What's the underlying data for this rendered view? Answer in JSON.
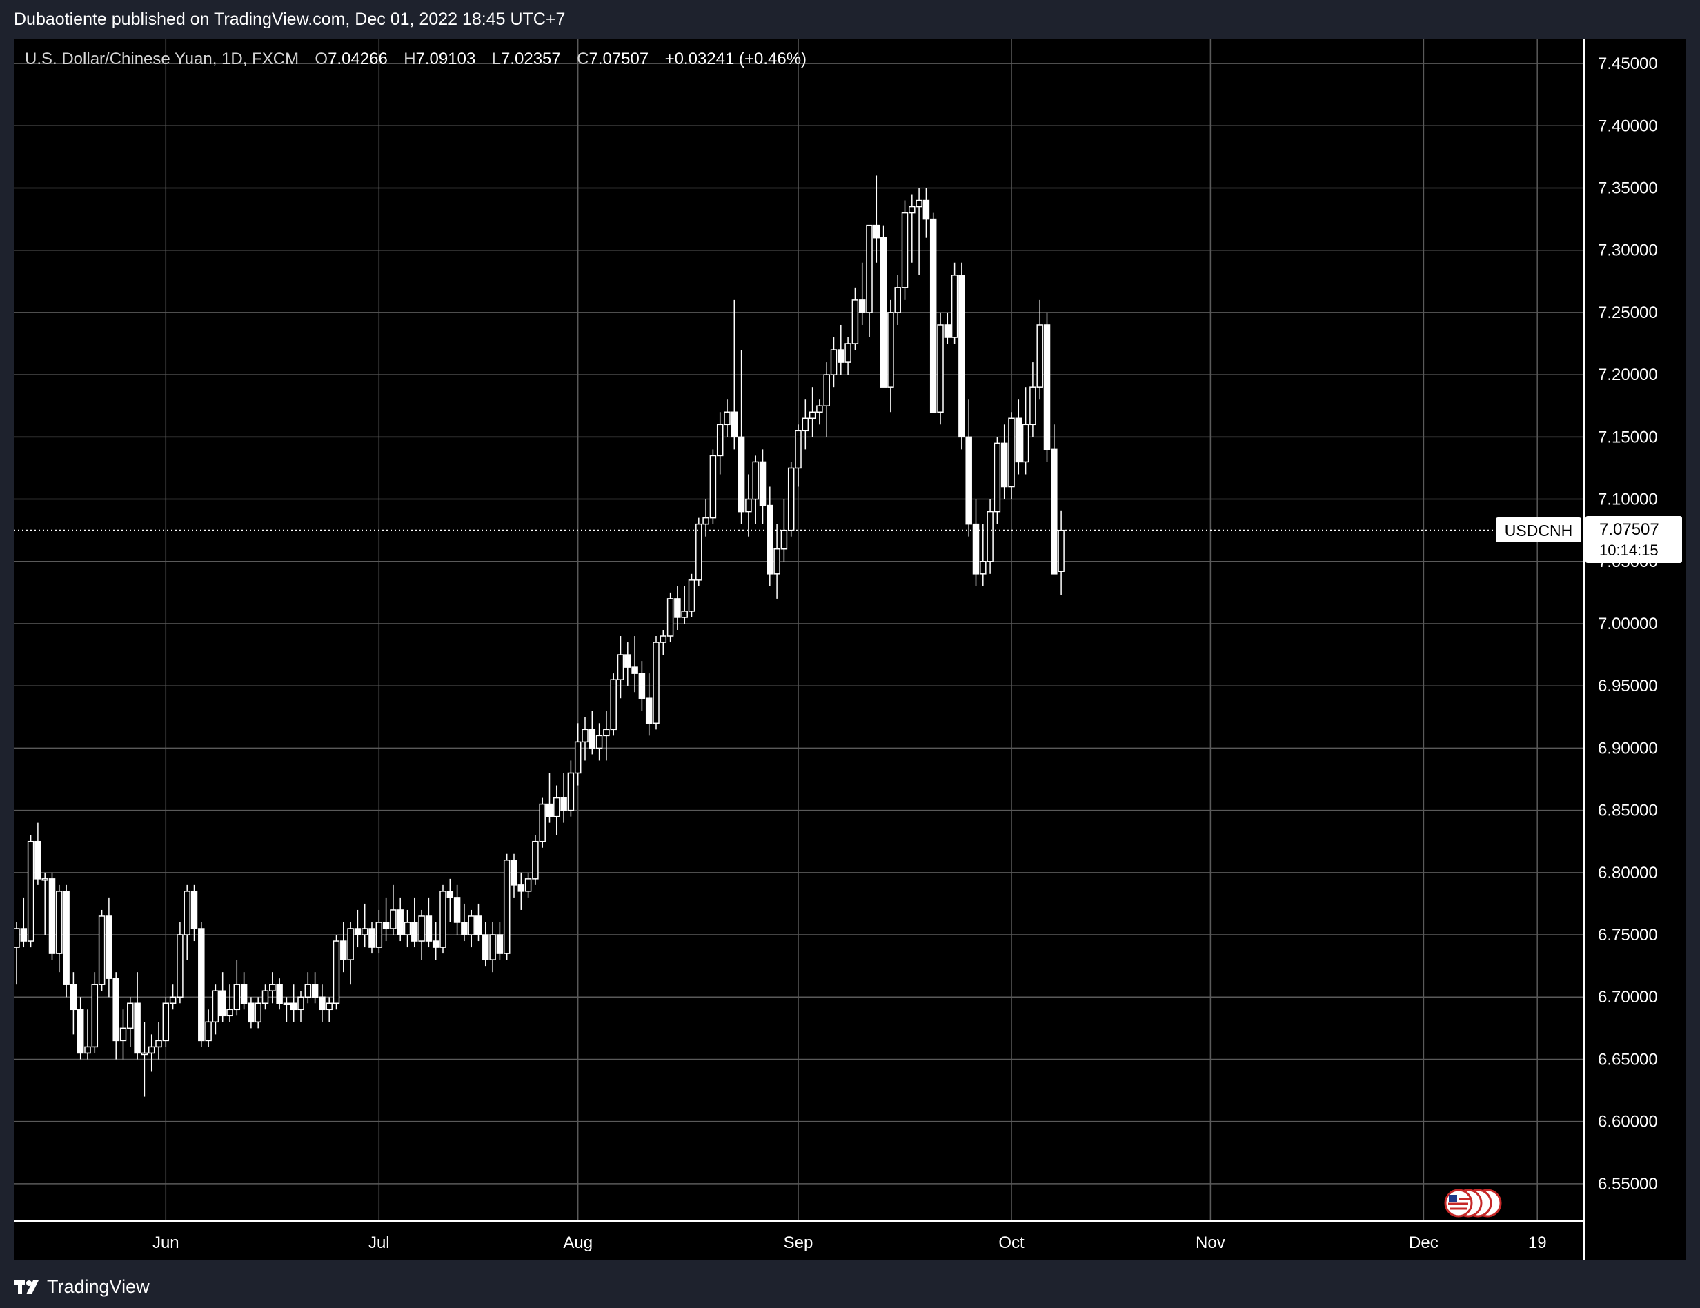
{
  "publish_line": "Dubaotiente published on TradingView.com, Dec 01, 2022 18:45 UTC+7",
  "footer_brand": "TradingView",
  "colors": {
    "background": "#000000",
    "frame": "#1e222d",
    "grid": "#5a5a5a",
    "candle": "#ffffff",
    "text": "#ffffff",
    "label_bg": "#ffffff",
    "label_text": "#000000"
  },
  "legend": {
    "symbol": "U.S. Dollar/Chinese Yuan, 1D, FXCM",
    "open_label": "O",
    "open": "7.04266",
    "high_label": "H",
    "high": "7.09103",
    "low_label": "L",
    "low": "7.02357",
    "close_label": "C",
    "close": "7.07507",
    "change": "+0.03241 (+0.46%)"
  },
  "price_label": {
    "ticker": "USDCNH",
    "price": "7.07507",
    "countdown": "10:14:15"
  },
  "event_icon": "us-flag-events-icon",
  "chart_data": {
    "type": "candlestick",
    "title": "U.S. Dollar/Chinese Yuan, 1D, FXCM",
    "ylim": [
      6.52,
      7.47
    ],
    "y_ticks": [
      "6.55000",
      "6.60000",
      "6.65000",
      "6.70000",
      "6.75000",
      "6.80000",
      "6.85000",
      "6.90000",
      "6.95000",
      "7.00000",
      "7.05000",
      "7.10000",
      "7.15000",
      "7.20000",
      "7.25000",
      "7.30000",
      "7.35000",
      "7.40000",
      "7.45000"
    ],
    "x_ticks": [
      {
        "label": "Jun",
        "index": 21
      },
      {
        "label": "Jul",
        "index": 51
      },
      {
        "label": "Aug",
        "index": 79
      },
      {
        "label": "Sep",
        "index": 110
      },
      {
        "label": "Oct",
        "index": 140
      },
      {
        "label": "Nov",
        "index": 168
      },
      {
        "label": "Dec",
        "index": 198
      },
      {
        "label": "19",
        "index": 214
      }
    ],
    "grid": true,
    "candles": [
      [
        6.74,
        6.76,
        6.71,
        6.755
      ],
      [
        6.755,
        6.78,
        6.74,
        6.745
      ],
      [
        6.745,
        6.83,
        6.74,
        6.825
      ],
      [
        6.825,
        6.84,
        6.79,
        6.795
      ],
      [
        6.795,
        6.8,
        6.75,
        6.795
      ],
      [
        6.795,
        6.8,
        6.73,
        6.735
      ],
      [
        6.735,
        6.79,
        6.72,
        6.785
      ],
      [
        6.785,
        6.79,
        6.7,
        6.71
      ],
      [
        6.71,
        6.72,
        6.67,
        6.69
      ],
      [
        6.69,
        6.7,
        6.65,
        6.655
      ],
      [
        6.655,
        6.69,
        6.65,
        6.66
      ],
      [
        6.66,
        6.72,
        6.655,
        6.71
      ],
      [
        6.71,
        6.77,
        6.705,
        6.765
      ],
      [
        6.765,
        6.78,
        6.7,
        6.715
      ],
      [
        6.715,
        6.72,
        6.65,
        6.665
      ],
      [
        6.665,
        6.69,
        6.65,
        6.675
      ],
      [
        6.675,
        6.7,
        6.66,
        6.695
      ],
      [
        6.695,
        6.72,
        6.65,
        6.655
      ],
      [
        6.655,
        6.68,
        6.62,
        6.655
      ],
      [
        6.655,
        6.67,
        6.64,
        6.66
      ],
      [
        6.66,
        6.68,
        6.65,
        6.665
      ],
      [
        6.665,
        6.7,
        6.66,
        6.695
      ],
      [
        6.695,
        6.71,
        6.69,
        6.7
      ],
      [
        6.7,
        6.76,
        6.695,
        6.75
      ],
      [
        6.75,
        6.79,
        6.73,
        6.785
      ],
      [
        6.785,
        6.79,
        6.745,
        6.755
      ],
      [
        6.755,
        6.76,
        6.66,
        6.665
      ],
      [
        6.665,
        6.69,
        6.66,
        6.68
      ],
      [
        6.68,
        6.71,
        6.67,
        6.705
      ],
      [
        6.705,
        6.72,
        6.68,
        6.685
      ],
      [
        6.685,
        6.71,
        6.68,
        6.69
      ],
      [
        6.69,
        6.73,
        6.685,
        6.71
      ],
      [
        6.71,
        6.72,
        6.69,
        6.695
      ],
      [
        6.695,
        6.7,
        6.675,
        6.68
      ],
      [
        6.68,
        6.7,
        6.675,
        6.695
      ],
      [
        6.695,
        6.71,
        6.69,
        6.705
      ],
      [
        6.705,
        6.72,
        6.695,
        6.71
      ],
      [
        6.71,
        6.715,
        6.69,
        6.695
      ],
      [
        6.695,
        6.7,
        6.68,
        6.695
      ],
      [
        6.695,
        6.71,
        6.68,
        6.69
      ],
      [
        6.69,
        6.705,
        6.68,
        6.7
      ],
      [
        6.7,
        6.72,
        6.695,
        6.71
      ],
      [
        6.71,
        6.72,
        6.695,
        6.7
      ],
      [
        6.7,
        6.71,
        6.68,
        6.69
      ],
      [
        6.69,
        6.7,
        6.68,
        6.695
      ],
      [
        6.695,
        6.75,
        6.69,
        6.745
      ],
      [
        6.745,
        6.76,
        6.72,
        6.73
      ],
      [
        6.73,
        6.76,
        6.71,
        6.755
      ],
      [
        6.755,
        6.77,
        6.74,
        6.75
      ],
      [
        6.75,
        6.775,
        6.74,
        6.755
      ],
      [
        6.755,
        6.76,
        6.735,
        6.74
      ],
      [
        6.74,
        6.77,
        6.735,
        6.76
      ],
      [
        6.76,
        6.78,
        6.745,
        6.755
      ],
      [
        6.755,
        6.79,
        6.75,
        6.77
      ],
      [
        6.77,
        6.78,
        6.745,
        6.75
      ],
      [
        6.75,
        6.77,
        6.74,
        6.76
      ],
      [
        6.76,
        6.78,
        6.74,
        6.745
      ],
      [
        6.745,
        6.77,
        6.73,
        6.765
      ],
      [
        6.765,
        6.78,
        6.74,
        6.745
      ],
      [
        6.745,
        6.76,
        6.73,
        6.74
      ],
      [
        6.74,
        6.79,
        6.735,
        6.785
      ],
      [
        6.785,
        6.795,
        6.76,
        6.78
      ],
      [
        6.78,
        6.79,
        6.75,
        6.76
      ],
      [
        6.76,
        6.775,
        6.745,
        6.75
      ],
      [
        6.75,
        6.77,
        6.74,
        6.765
      ],
      [
        6.765,
        6.775,
        6.745,
        6.75
      ],
      [
        6.75,
        6.76,
        6.725,
        6.73
      ],
      [
        6.73,
        6.76,
        6.72,
        6.75
      ],
      [
        6.75,
        6.76,
        6.73,
        6.735
      ],
      [
        6.735,
        6.815,
        6.73,
        6.81
      ],
      [
        6.81,
        6.815,
        6.78,
        6.79
      ],
      [
        6.79,
        6.8,
        6.77,
        6.785
      ],
      [
        6.785,
        6.8,
        6.78,
        6.795
      ],
      [
        6.795,
        6.83,
        6.79,
        6.825
      ],
      [
        6.825,
        6.86,
        6.82,
        6.855
      ],
      [
        6.855,
        6.88,
        6.84,
        6.845
      ],
      [
        6.845,
        6.87,
        6.83,
        6.86
      ],
      [
        6.86,
        6.88,
        6.84,
        6.85
      ],
      [
        6.85,
        6.89,
        6.845,
        6.88
      ],
      [
        6.88,
        6.92,
        6.87,
        6.905
      ],
      [
        6.905,
        6.925,
        6.89,
        6.915
      ],
      [
        6.915,
        6.93,
        6.895,
        6.9
      ],
      [
        6.9,
        6.92,
        6.89,
        6.91
      ],
      [
        6.91,
        6.93,
        6.89,
        6.915
      ],
      [
        6.915,
        6.96,
        6.91,
        6.955
      ],
      [
        6.955,
        6.99,
        6.94,
        6.975
      ],
      [
        6.975,
        6.985,
        6.95,
        6.965
      ],
      [
        6.965,
        6.99,
        6.945,
        6.96
      ],
      [
        6.96,
        6.97,
        6.93,
        6.94
      ],
      [
        6.94,
        6.96,
        6.91,
        6.92
      ],
      [
        6.92,
        6.99,
        6.915,
        6.985
      ],
      [
        6.985,
        6.995,
        6.975,
        6.99
      ],
      [
        6.99,
        7.025,
        6.985,
        7.02
      ],
      [
        7.02,
        7.03,
        6.995,
        7.005
      ],
      [
        7.005,
        7.03,
        7.0,
        7.01
      ],
      [
        7.01,
        7.04,
        7.005,
        7.035
      ],
      [
        7.035,
        7.085,
        7.03,
        7.08
      ],
      [
        7.08,
        7.1,
        7.07,
        7.085
      ],
      [
        7.085,
        7.14,
        7.08,
        7.135
      ],
      [
        7.135,
        7.17,
        7.12,
        7.16
      ],
      [
        7.16,
        7.18,
        7.15,
        7.17
      ],
      [
        7.17,
        7.26,
        7.14,
        7.15
      ],
      [
        7.15,
        7.22,
        7.08,
        7.09
      ],
      [
        7.09,
        7.12,
        7.07,
        7.1
      ],
      [
        7.1,
        7.135,
        7.08,
        7.13
      ],
      [
        7.13,
        7.14,
        7.08,
        7.095
      ],
      [
        7.095,
        7.11,
        7.03,
        7.04
      ],
      [
        7.04,
        7.08,
        7.02,
        7.06
      ],
      [
        7.06,
        7.1,
        7.05,
        7.075
      ],
      [
        7.075,
        7.13,
        7.07,
        7.125
      ],
      [
        7.125,
        7.16,
        7.11,
        7.155
      ],
      [
        7.155,
        7.18,
        7.14,
        7.165
      ],
      [
        7.165,
        7.19,
        7.15,
        7.17
      ],
      [
        7.17,
        7.18,
        7.16,
        7.175
      ],
      [
        7.175,
        7.21,
        7.15,
        7.2
      ],
      [
        7.2,
        7.23,
        7.19,
        7.22
      ],
      [
        7.22,
        7.24,
        7.2,
        7.21
      ],
      [
        7.21,
        7.23,
        7.2,
        7.225
      ],
      [
        7.225,
        7.27,
        7.22,
        7.26
      ],
      [
        7.26,
        7.29,
        7.24,
        7.25
      ],
      [
        7.25,
        7.32,
        7.23,
        7.32
      ],
      [
        7.32,
        7.36,
        7.29,
        7.31
      ],
      [
        7.31,
        7.32,
        7.19,
        7.19
      ],
      [
        7.19,
        7.26,
        7.17,
        7.25
      ],
      [
        7.25,
        7.28,
        7.24,
        7.27
      ],
      [
        7.27,
        7.34,
        7.26,
        7.33
      ],
      [
        7.33,
        7.345,
        7.29,
        7.335
      ],
      [
        7.335,
        7.35,
        7.28,
        7.34
      ],
      [
        7.34,
        7.35,
        7.31,
        7.325
      ],
      [
        7.325,
        7.33,
        7.17,
        7.17
      ],
      [
        7.17,
        7.25,
        7.16,
        7.24
      ],
      [
        7.24,
        7.25,
        7.225,
        7.23
      ],
      [
        7.23,
        7.29,
        7.225,
        7.28
      ],
      [
        7.28,
        7.29,
        7.14,
        7.15
      ],
      [
        7.15,
        7.18,
        7.07,
        7.08
      ],
      [
        7.08,
        7.1,
        7.03,
        7.04
      ],
      [
        7.04,
        7.08,
        7.03,
        7.05
      ],
      [
        7.05,
        7.1,
        7.04,
        7.09
      ],
      [
        7.09,
        7.15,
        7.08,
        7.145
      ],
      [
        7.145,
        7.16,
        7.1,
        7.11
      ],
      [
        7.11,
        7.17,
        7.1,
        7.165
      ],
      [
        7.165,
        7.18,
        7.12,
        7.13
      ],
      [
        7.13,
        7.19,
        7.12,
        7.16
      ],
      [
        7.16,
        7.21,
        7.15,
        7.19
      ],
      [
        7.19,
        7.26,
        7.18,
        7.24
      ],
      [
        7.24,
        7.25,
        7.13,
        7.14
      ],
      [
        7.14,
        7.16,
        7.04,
        7.04
      ],
      [
        7.042,
        7.091,
        7.023,
        7.075
      ]
    ]
  }
}
